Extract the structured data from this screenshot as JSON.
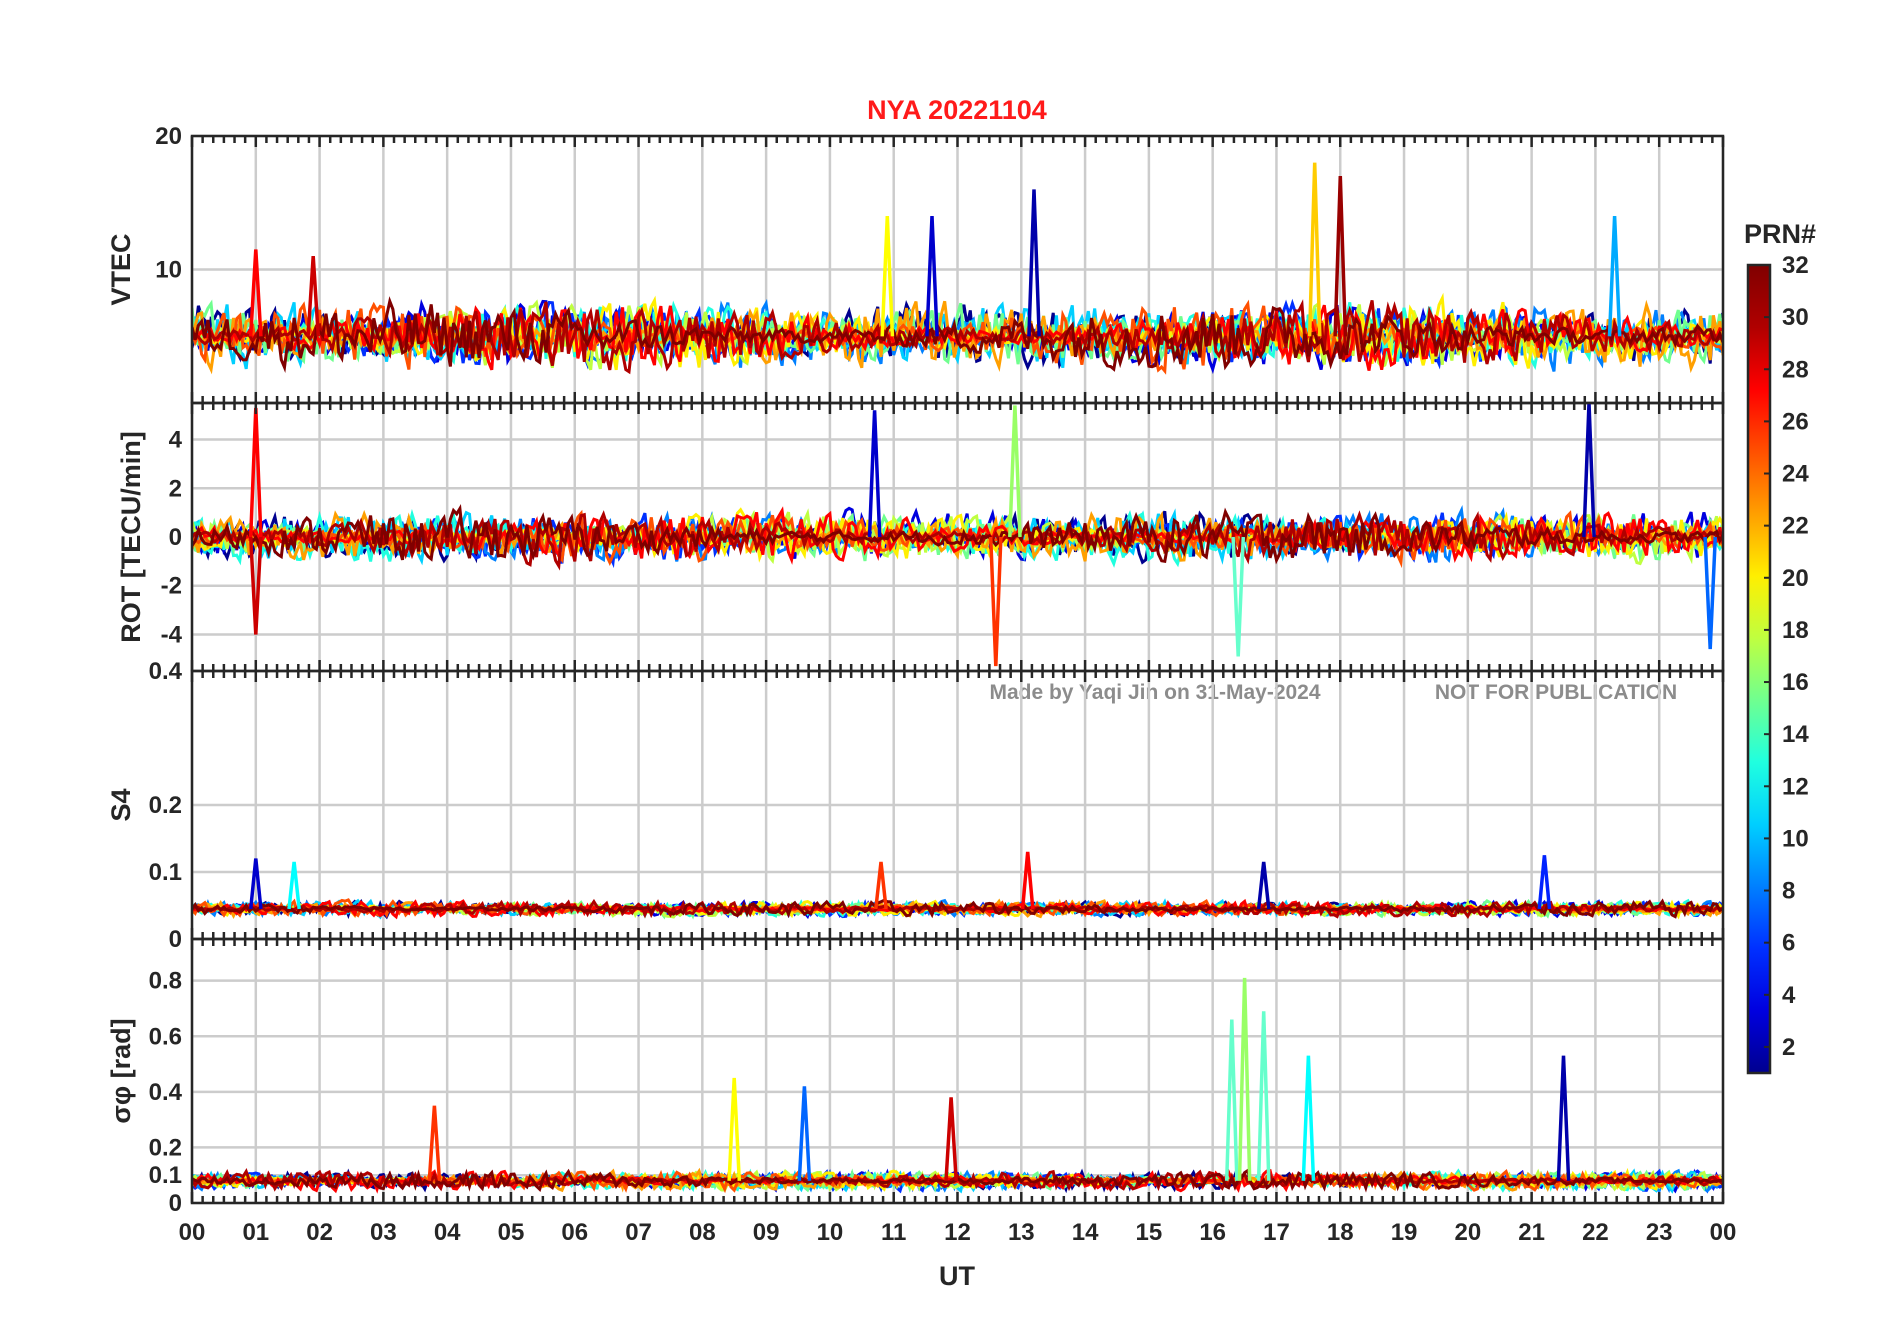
{
  "chart_data": [
    {
      "type": "line",
      "panel": "vtec",
      "title": "NYA   20221104",
      "ylabel": "VTEC",
      "ylim": [
        0,
        20
      ],
      "yticks": [
        0,
        10,
        20
      ],
      "ytick_labels": [
        "",
        "10",
        "20"
      ],
      "xlim": [
        0,
        24
      ],
      "baseline": 5,
      "amplitude": 2.2,
      "peaks": [
        [
          1.0,
          11.5,
          "#ff0000"
        ],
        [
          1.9,
          11.0,
          "#cc0000"
        ],
        [
          10.9,
          14,
          "#ffff00"
        ],
        [
          11.6,
          14,
          "#0000cc"
        ],
        [
          13.2,
          16,
          "#0000aa"
        ],
        [
          17.6,
          18,
          "#ffcc00"
        ],
        [
          18.0,
          17,
          "#990000"
        ],
        [
          22.3,
          14,
          "#00aaff"
        ]
      ],
      "ypad": 0.3
    },
    {
      "type": "line",
      "panel": "rot",
      "ylabel": "ROT [TECU/min]",
      "ylim": [
        -5.5,
        5.5
      ],
      "yticks": [
        -4,
        -2,
        0,
        2,
        4
      ],
      "ytick_labels": [
        "-4",
        "-2",
        "0",
        "2",
        "4"
      ],
      "xlim": [
        0,
        24
      ],
      "baseline": 0,
      "amplitude": 0.9,
      "peaks": [
        [
          1.0,
          5.3,
          "#ff0000"
        ],
        [
          1.0,
          -4,
          "#cc0000"
        ],
        [
          10.7,
          5.2,
          "#0000cc"
        ],
        [
          12.6,
          -5.3,
          "#ff3300"
        ],
        [
          12.9,
          5.4,
          "#99ff66"
        ],
        [
          16.4,
          -4.9,
          "#66ffcc"
        ],
        [
          21.9,
          5.5,
          "#0000aa"
        ],
        [
          23.8,
          -4.6,
          "#0066ff"
        ]
      ],
      "ypad": 0
    },
    {
      "type": "line",
      "panel": "s4",
      "ylabel": "S4",
      "ylim": [
        0,
        0.4
      ],
      "yticks": [
        0,
        0.1,
        0.2
      ],
      "ytick_labels": [
        "0",
        "0.1",
        "0.2"
      ],
      "extra_tick_labels": [
        [
          "0.4",
          0.4
        ]
      ],
      "xlim": [
        0,
        24
      ],
      "baseline": 0.045,
      "amplitude": 0.01,
      "peaks": [
        [
          1.0,
          0.12,
          "#0000cc"
        ],
        [
          1.6,
          0.115,
          "#00ffff"
        ],
        [
          10.8,
          0.115,
          "#ff3300"
        ],
        [
          13.1,
          0.13,
          "#ff0000"
        ],
        [
          16.8,
          0.115,
          "#0000aa"
        ],
        [
          21.2,
          0.125,
          "#0022ff"
        ]
      ],
      "ypad": 0
    },
    {
      "type": "line",
      "panel": "sigma_phi",
      "ylabel": "σφ [rad]",
      "ylim": [
        0,
        0.95
      ],
      "yticks": [
        0,
        0.1,
        0.2,
        0.4,
        0.6,
        0.8
      ],
      "ytick_labels": [
        "0",
        "0.1",
        "0.2",
        "0.4",
        "0.6",
        "0.8"
      ],
      "xlim": [
        0,
        24
      ],
      "baseline": 0.08,
      "amplitude": 0.03,
      "peaks": [
        [
          3.8,
          0.35,
          "#ff3300"
        ],
        [
          8.5,
          0.45,
          "#ffff00"
        ],
        [
          9.6,
          0.42,
          "#0066ff"
        ],
        [
          11.9,
          0.38,
          "#cc0000"
        ],
        [
          16.3,
          0.66,
          "#66ffcc"
        ],
        [
          16.5,
          0.81,
          "#99ff66"
        ],
        [
          16.8,
          0.69,
          "#66ffcc"
        ],
        [
          17.5,
          0.53,
          "#00ffff"
        ],
        [
          21.5,
          0.53,
          "#0000aa"
        ]
      ],
      "ypad": 0
    }
  ],
  "xaxis": {
    "label": "UT",
    "tick_labels": [
      "00",
      "01",
      "02",
      "03",
      "04",
      "05",
      "06",
      "07",
      "08",
      "09",
      "10",
      "11",
      "12",
      "13",
      "14",
      "15",
      "16",
      "17",
      "18",
      "19",
      "20",
      "21",
      "22",
      "23",
      "00"
    ]
  },
  "colorbar": {
    "label": "PRN#",
    "range": [
      1,
      32
    ],
    "tick_labels": [
      "2",
      "4",
      "6",
      "8",
      "10",
      "12",
      "14",
      "16",
      "18",
      "20",
      "22",
      "24",
      "26",
      "28",
      "30",
      "32"
    ],
    "colormap": "jet"
  },
  "watermark": {
    "made_by": "Made by Yaqi Jin on 31-May-2024",
    "notice": "NOT FOR PUBLICATION"
  },
  "series_colors": [
    "#00008f",
    "#0000df",
    "#0030ff",
    "#0080ff",
    "#00cfff",
    "#20ffdf",
    "#70ff8f",
    "#bfff40",
    "#ffef00",
    "#ff9f00",
    "#ff5000",
    "#ff0000",
    "#b00000",
    "#800000"
  ]
}
